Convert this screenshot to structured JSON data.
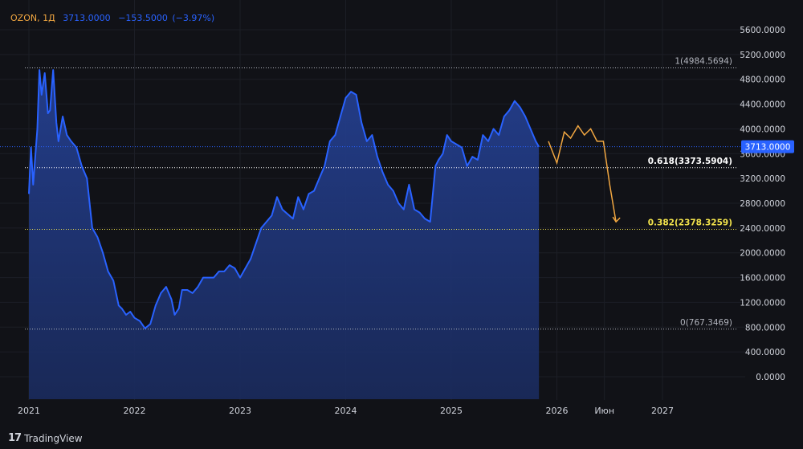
{
  "header": {
    "symbol": "OZON",
    "interval": "1Д",
    "last": "3713.0000",
    "change": "−153.5000",
    "change_pct": "(−3.97%)"
  },
  "brand": "TradingView",
  "colors": {
    "background": "#111217",
    "line": "#2962ff",
    "area": "#1f3a8a",
    "forecast": "#f0a641",
    "fib_0382": "#f2e34c",
    "fib_0618": "#ffffff",
    "fib_other": "#b2b5be"
  },
  "chart_data": {
    "type": "area",
    "y_axis_ticks": [
      "5600.0000",
      "5200.0000",
      "4800.0000",
      "4400.0000",
      "4000.0000",
      "3600.0000",
      "3200.0000",
      "2800.0000",
      "2400.0000",
      "2000.0000",
      "1600.0000",
      "1200.0000",
      "800.0000",
      "400.0000",
      "0.0000"
    ],
    "x_axis_ticks": [
      "2021",
      "2022",
      "2023",
      "2024",
      "2025",
      "2026",
      "Июн",
      "2027"
    ],
    "last_price_label": "3713.0000",
    "ylim": [
      -100,
      5850
    ],
    "series": [
      {
        "x": [
          2021.0,
          2021.02,
          2021.04,
          2021.06,
          2021.08,
          2021.1,
          2021.12,
          2021.15,
          2021.18,
          2021.2,
          2021.23,
          2021.26,
          2021.28,
          2021.32,
          2021.36,
          2021.4,
          2021.45,
          2021.5,
          2021.55,
          2021.6,
          2021.65,
          2021.7,
          2021.75,
          2021.8,
          2021.85,
          2021.88,
          2021.92,
          2021.96,
          2022.0,
          2022.05,
          2022.1,
          2022.15,
          2022.2,
          2022.25,
          2022.3,
          2022.35,
          2022.38,
          2022.42,
          2022.45,
          2022.5,
          2022.55,
          2022.6,
          2022.65,
          2022.7,
          2022.75,
          2022.8,
          2022.85,
          2022.9,
          2022.95,
          2023.0,
          2023.1,
          2023.2,
          2023.3,
          2023.35,
          2023.4,
          2023.5,
          2023.55,
          2023.6,
          2023.65,
          2023.7,
          2023.75,
          2023.8,
          2023.85,
          2023.9,
          2023.95,
          2024.0,
          2024.05,
          2024.1,
          2024.15,
          2024.2,
          2024.25,
          2024.3,
          2024.35,
          2024.4,
          2024.45,
          2024.5,
          2024.55,
          2024.6,
          2024.65,
          2024.7,
          2024.75,
          2024.8,
          2024.85,
          2024.88,
          2024.92,
          2024.96,
          2025.0,
          2025.05,
          2025.1,
          2025.15,
          2025.2,
          2025.25,
          2025.3,
          2025.35,
          2025.4,
          2025.45,
          2025.5,
          2025.55,
          2025.6,
          2025.65,
          2025.7,
          2025.75,
          2025.8,
          2025.83
        ],
        "values": [
          2950,
          3700,
          3100,
          3550,
          4000,
          4950,
          4550,
          4900,
          4250,
          4300,
          4950,
          4100,
          3800,
          4200,
          3900,
          3800,
          3700,
          3400,
          3200,
          2400,
          2250,
          2000,
          1700,
          1550,
          1150,
          1100,
          1000,
          1050,
          950,
          900,
          780,
          850,
          1150,
          1350,
          1450,
          1250,
          1000,
          1100,
          1400,
          1400,
          1350,
          1450,
          1600,
          1600,
          1600,
          1700,
          1700,
          1800,
          1750,
          1600,
          1900,
          2400,
          2600,
          2900,
          2700,
          2550,
          2900,
          2700,
          2950,
          3000,
          3200,
          3400,
          3800,
          3900,
          4200,
          4500,
          4600,
          4550,
          4100,
          3800,
          3900,
          3550,
          3300,
          3100,
          3000,
          2800,
          2700,
          3100,
          2700,
          2650,
          2550,
          2500,
          3400,
          3500,
          3600,
          3900,
          3800,
          3750,
          3700,
          3400,
          3550,
          3500,
          3900,
          3800,
          4000,
          3900,
          4200,
          4300,
          4450,
          4350,
          4200,
          4000,
          3800,
          3713
        ]
      },
      {
        "x": [
          2025.92,
          2026.0,
          2026.07,
          2026.13,
          2026.2,
          2026.26,
          2026.32,
          2026.38,
          2026.44,
          2026.5,
          2026.56
        ],
        "values": [
          3800,
          3450,
          3950,
          3850,
          4050,
          3900,
          4000,
          3800,
          3800,
          3100,
          2500
        ]
      }
    ],
    "fib_levels": [
      {
        "ratio": "1",
        "label": "1(4984.5694)",
        "value": 4984.5694
      },
      {
        "ratio": "0.618",
        "label": "0.618(3373.5904)",
        "value": 3373.5904
      },
      {
        "ratio": "0.382",
        "label": "0.382(2378.3259)",
        "value": 2378.3259
      },
      {
        "ratio": "0",
        "label": "0(767.3469)",
        "value": 767.3469
      }
    ]
  }
}
